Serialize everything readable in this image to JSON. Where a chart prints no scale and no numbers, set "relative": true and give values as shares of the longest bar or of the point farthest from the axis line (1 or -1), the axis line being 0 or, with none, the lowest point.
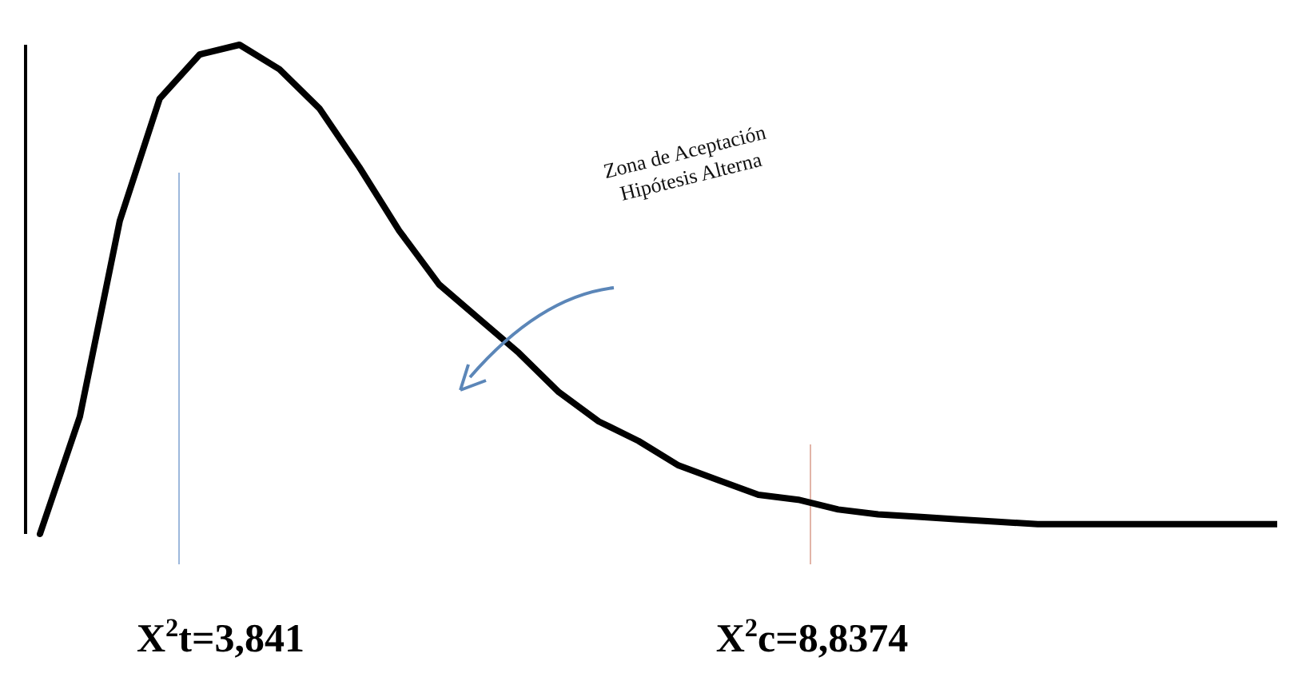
{
  "chart_data": {
    "type": "line",
    "relative": true,
    "marker": "none",
    "line_style": "solid",
    "categories": [
      null,
      null,
      null,
      null,
      null,
      null,
      null,
      null,
      null,
      null,
      null,
      null,
      null,
      null,
      null,
      null,
      null,
      null,
      null,
      null,
      null,
      null,
      null,
      null,
      null,
      null,
      null,
      null,
      null,
      null,
      null,
      null
    ],
    "series": [
      {
        "color": "#000000",
        "values": [
          0,
          0.24,
          0.64,
          0.89,
          0.98,
          1,
          0.95,
          0.87,
          0.75,
          0.62,
          0.51,
          0.44,
          0.37,
          0.29,
          0.23,
          0.19,
          0.14,
          0.11,
          0.08,
          0.07,
          0.05,
          0.04,
          0.035,
          0.03,
          0.025,
          0.02,
          0.02,
          0.02,
          0.02,
          0.02,
          0.02,
          0.02
        ]
      }
    ],
    "annotations": [
      "Zona de Aceptación",
      "Hipótesis Alterna",
      "X$^{2}$t=3,841",
      "X$^{2}$c=8,8374"
    ]
  }
}
